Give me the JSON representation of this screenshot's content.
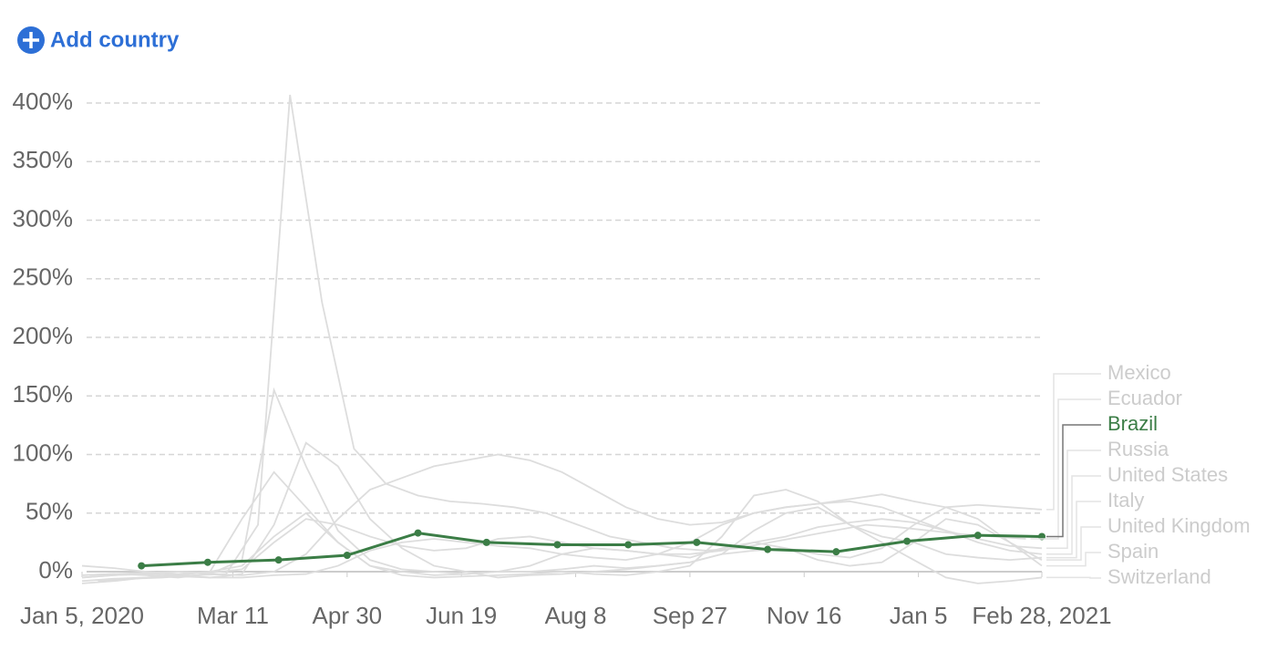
{
  "add_country": "Add country",
  "chart_data": {
    "type": "line",
    "xlim": [
      "2020-01-05",
      "2021-02-28"
    ],
    "xticks": [
      {
        "value": "2020-01-05",
        "label": "Jan 5, 2020"
      },
      {
        "value": "2020-03-11",
        "label": "Mar 11"
      },
      {
        "value": "2020-04-30",
        "label": "Apr 30"
      },
      {
        "value": "2020-06-19",
        "label": "Jun 19"
      },
      {
        "value": "2020-08-08",
        "label": "Aug 8"
      },
      {
        "value": "2020-09-27",
        "label": "Sep 27"
      },
      {
        "value": "2020-11-16",
        "label": "Nov 16"
      },
      {
        "value": "2021-01-05",
        "label": "Jan 5"
      },
      {
        "value": "2021-02-28",
        "label": "Feb 28, 2021"
      }
    ],
    "ylim": [
      -20,
      400
    ],
    "yticks": [
      {
        "value": 0,
        "label": "0%"
      },
      {
        "value": 50,
        "label": "50%"
      },
      {
        "value": 100,
        "label": "100%"
      },
      {
        "value": 150,
        "label": "150%"
      },
      {
        "value": 200,
        "label": "200%"
      },
      {
        "value": 250,
        "label": "250%"
      },
      {
        "value": 300,
        "label": "300%"
      },
      {
        "value": 350,
        "label": "350%"
      },
      {
        "value": 400,
        "label": "400%"
      }
    ],
    "grid": true,
    "series": [
      {
        "name": "Mexico",
        "color": "#dddddd",
        "x": [
          "2020-01-05",
          "2020-01-19",
          "2020-02-02",
          "2020-02-16",
          "2020-03-01",
          "2020-03-15",
          "2020-03-29",
          "2020-04-12",
          "2020-04-26",
          "2020-05-10",
          "2020-05-24",
          "2020-06-07",
          "2020-06-21",
          "2020-07-05",
          "2020-07-19",
          "2020-08-02",
          "2020-08-16",
          "2020-08-30",
          "2020-09-13",
          "2020-09-27",
          "2020-10-11",
          "2020-10-25",
          "2020-11-08",
          "2020-11-22",
          "2020-12-06",
          "2020-12-20",
          "2021-01-03",
          "2021-01-17",
          "2021-01-31",
          "2021-02-14",
          "2021-02-28"
        ],
        "values": [
          -5,
          -3,
          -2,
          0,
          -2,
          -3,
          0,
          15,
          45,
          70,
          80,
          90,
          95,
          100,
          95,
          85,
          70,
          55,
          45,
          40,
          42,
          50,
          55,
          58,
          62,
          66,
          60,
          55,
          57,
          55,
          53
        ]
      },
      {
        "name": "Ecuador",
        "color": "#dddddd",
        "x": [
          "2020-01-12",
          "2020-01-26",
          "2020-02-09",
          "2020-02-23",
          "2020-03-08",
          "2020-03-22",
          "2020-04-05",
          "2020-04-19",
          "2020-05-03",
          "2020-05-17",
          "2020-05-31",
          "2020-06-14",
          "2020-06-28",
          "2020-07-12",
          "2020-07-26",
          "2020-08-09",
          "2020-08-23",
          "2020-09-06",
          "2020-09-20",
          "2020-10-04",
          "2020-10-18",
          "2020-11-01",
          "2020-11-15",
          "2020-11-29",
          "2020-12-13",
          "2020-12-27",
          "2021-01-10",
          "2021-01-24",
          "2021-02-07",
          "2021-02-21"
        ],
        "values": [
          -8,
          -6,
          -5,
          -3,
          -2,
          40,
          407,
          230,
          105,
          75,
          65,
          60,
          58,
          55,
          50,
          40,
          30,
          25,
          20,
          18,
          20,
          25,
          30,
          35,
          40,
          38,
          35,
          32,
          30,
          28
        ]
      },
      {
        "name": "Brazil",
        "color": "#3b7d46",
        "highlight": true,
        "x": [
          "2020-01-31",
          "2020-02-29",
          "2020-03-31",
          "2020-04-30",
          "2020-05-31",
          "2020-06-30",
          "2020-07-31",
          "2020-08-31",
          "2020-09-30",
          "2020-10-31",
          "2020-11-30",
          "2020-12-31",
          "2021-01-31",
          "2021-02-28"
        ],
        "values": [
          5,
          8,
          10,
          14,
          33,
          25,
          23,
          23,
          25,
          19,
          17,
          26,
          31,
          30
        ]
      },
      {
        "name": "Russia",
        "color": "#dddddd",
        "x": [
          "2020-01-05",
          "2020-01-19",
          "2020-02-02",
          "2020-02-16",
          "2020-03-01",
          "2020-03-15",
          "2020-03-29",
          "2020-04-12",
          "2020-04-26",
          "2020-05-10",
          "2020-05-24",
          "2020-06-07",
          "2020-06-21",
          "2020-07-05",
          "2020-07-19",
          "2020-08-02",
          "2020-08-16",
          "2020-08-30",
          "2020-09-13",
          "2020-09-27",
          "2020-10-11",
          "2020-10-25",
          "2020-11-08",
          "2020-11-22",
          "2020-12-06",
          "2020-12-20",
          "2021-01-03",
          "2021-01-17",
          "2021-01-31",
          "2021-02-14",
          "2021-02-28"
        ],
        "values": [
          -8,
          -6,
          -5,
          -4,
          -5,
          -5,
          -3,
          -2,
          5,
          18,
          25,
          28,
          25,
          22,
          20,
          15,
          12,
          10,
          15,
          25,
          40,
          50,
          55,
          58,
          60,
          55,
          45,
          35,
          28,
          22,
          20
        ]
      },
      {
        "name": "United States",
        "color": "#dddddd",
        "x": [
          "2020-01-05",
          "2020-01-19",
          "2020-02-02",
          "2020-02-16",
          "2020-03-01",
          "2020-03-15",
          "2020-03-29",
          "2020-04-12",
          "2020-04-26",
          "2020-05-10",
          "2020-05-24",
          "2020-06-07",
          "2020-06-21",
          "2020-07-05",
          "2020-07-19",
          "2020-08-02",
          "2020-08-16",
          "2020-08-30",
          "2020-09-13",
          "2020-09-27",
          "2020-10-11",
          "2020-10-25",
          "2020-11-08",
          "2020-11-22",
          "2020-12-06",
          "2020-12-20",
          "2021-01-03",
          "2021-01-17",
          "2021-01-31",
          "2021-02-14",
          "2021-02-28"
        ],
        "values": [
          -3,
          -2,
          -1,
          0,
          -1,
          2,
          25,
          45,
          40,
          30,
          22,
          18,
          20,
          28,
          30,
          25,
          20,
          18,
          15,
          15,
          18,
          25,
          30,
          38,
          42,
          45,
          42,
          35,
          25,
          18,
          15
        ]
      },
      {
        "name": "Italy",
        "color": "#dddddd",
        "x": [
          "2020-01-05",
          "2020-01-19",
          "2020-02-02",
          "2020-02-16",
          "2020-03-01",
          "2020-03-15",
          "2020-03-29",
          "2020-04-12",
          "2020-04-26",
          "2020-05-10",
          "2020-05-24",
          "2020-06-07",
          "2020-06-21",
          "2020-07-05",
          "2020-07-19",
          "2020-08-02",
          "2020-08-16",
          "2020-08-30",
          "2020-09-13",
          "2020-09-27",
          "2020-10-11",
          "2020-10-25",
          "2020-11-08",
          "2020-11-22",
          "2020-12-06",
          "2020-12-20",
          "2021-01-03",
          "2021-01-17",
          "2021-01-31",
          "2021-02-14",
          "2021-02-28"
        ],
        "values": [
          5,
          3,
          0,
          -2,
          0,
          45,
          85,
          55,
          25,
          5,
          0,
          -3,
          -2,
          0,
          0,
          2,
          5,
          3,
          5,
          8,
          15,
          35,
          50,
          55,
          40,
          30,
          25,
          15,
          12,
          10,
          12
        ]
      },
      {
        "name": "United Kingdom",
        "color": "#dddddd",
        "x": [
          "2020-01-05",
          "2020-01-19",
          "2020-02-02",
          "2020-02-16",
          "2020-03-01",
          "2020-03-15",
          "2020-03-29",
          "2020-04-12",
          "2020-04-26",
          "2020-05-10",
          "2020-05-24",
          "2020-06-07",
          "2020-06-21",
          "2020-07-05",
          "2020-07-19",
          "2020-08-02",
          "2020-08-16",
          "2020-08-30",
          "2020-09-13",
          "2020-09-27",
          "2020-10-11",
          "2020-10-25",
          "2020-11-08",
          "2020-11-22",
          "2020-12-06",
          "2020-12-20",
          "2021-01-03",
          "2021-01-17",
          "2021-01-31",
          "2021-02-14",
          "2021-02-28"
        ],
        "values": [
          -5,
          -3,
          -2,
          -3,
          -5,
          -2,
          40,
          110,
          90,
          45,
          20,
          5,
          0,
          -5,
          -3,
          -2,
          0,
          2,
          5,
          8,
          15,
          18,
          20,
          15,
          12,
          20,
          40,
          55,
          45,
          25,
          10
        ]
      },
      {
        "name": "Spain",
        "color": "#dddddd",
        "x": [
          "2020-01-05",
          "2020-01-19",
          "2020-02-02",
          "2020-02-16",
          "2020-03-01",
          "2020-03-15",
          "2020-03-29",
          "2020-04-12",
          "2020-04-26",
          "2020-05-10",
          "2020-05-24",
          "2020-06-07",
          "2020-06-21",
          "2020-07-05",
          "2020-07-19",
          "2020-08-02",
          "2020-08-16",
          "2020-08-30",
          "2020-09-13",
          "2020-09-27",
          "2020-10-11",
          "2020-10-25",
          "2020-11-08",
          "2020-11-22",
          "2020-12-06",
          "2020-12-20",
          "2021-01-03",
          "2021-01-17",
          "2021-01-31",
          "2021-02-14",
          "2021-02-28"
        ],
        "values": [
          -3,
          -2,
          -3,
          -5,
          -2,
          10,
          155,
          90,
          35,
          10,
          2,
          0,
          -2,
          0,
          5,
          15,
          20,
          18,
          15,
          12,
          20,
          25,
          20,
          10,
          5,
          8,
          25,
          45,
          40,
          25,
          5
        ]
      },
      {
        "name": "Switzerland",
        "color": "#dddddd",
        "x": [
          "2020-01-05",
          "2020-01-19",
          "2020-02-02",
          "2020-02-16",
          "2020-03-01",
          "2020-03-15",
          "2020-03-29",
          "2020-04-12",
          "2020-04-26",
          "2020-05-10",
          "2020-05-24",
          "2020-06-07",
          "2020-06-21",
          "2020-07-05",
          "2020-07-19",
          "2020-08-02",
          "2020-08-16",
          "2020-08-30",
          "2020-09-13",
          "2020-09-27",
          "2020-10-11",
          "2020-10-25",
          "2020-11-08",
          "2020-11-22",
          "2020-12-06",
          "2020-12-20",
          "2021-01-03",
          "2021-01-17",
          "2021-01-31",
          "2021-02-14",
          "2021-02-28"
        ],
        "values": [
          -10,
          -8,
          -5,
          -3,
          0,
          5,
          30,
          50,
          25,
          5,
          -3,
          -5,
          -4,
          -3,
          -2,
          0,
          -2,
          -3,
          0,
          5,
          30,
          65,
          70,
          60,
          40,
          25,
          10,
          -5,
          -10,
          -8,
          -5
        ]
      }
    ]
  }
}
